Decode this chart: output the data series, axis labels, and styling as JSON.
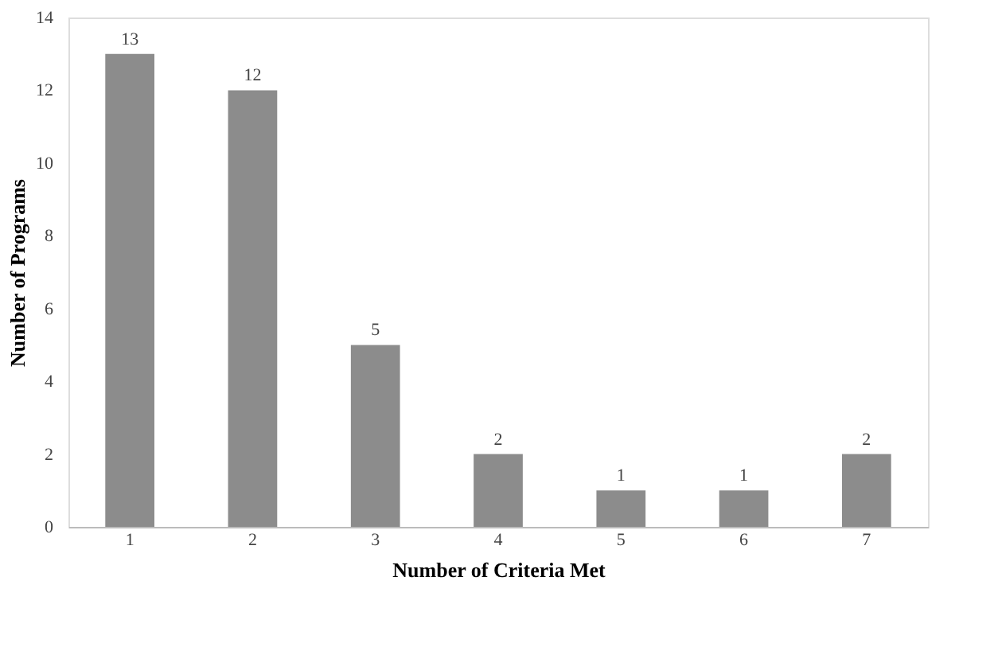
{
  "chart_data": {
    "type": "bar",
    "xlabel": "Number of Criteria Met",
    "ylabel": "Number of Programs",
    "categories": [
      "1",
      "2",
      "3",
      "4",
      "5",
      "6",
      "7"
    ],
    "values": [
      13,
      12,
      5,
      2,
      1,
      1,
      2
    ],
    "color": "#8c8c8c",
    "ylim": [
      0,
      14
    ],
    "yticks": [
      0,
      2,
      4,
      6,
      8,
      10,
      12,
      14
    ],
    "grid": false,
    "data_labels": true
  }
}
